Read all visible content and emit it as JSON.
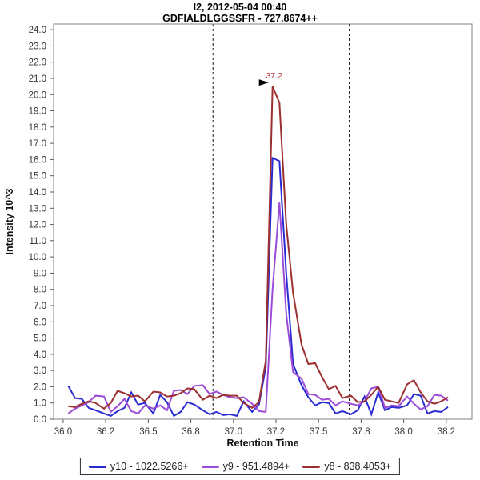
{
  "chart_data": {
    "type": "line",
    "title": "I2, 2012-05-04 00:40",
    "subtitle": "GDFIALDLGGSSFR - 727.8674++",
    "xlabel": "Retention Time",
    "ylabel": "Intensity 10^3",
    "xlim": [
      35.944,
      38.401
    ],
    "ylim": [
      0,
      24.35
    ],
    "grid": false,
    "legend_position": "bottom",
    "x_ticks": [
      {
        "v": 36.0,
        "label": "36.0"
      },
      {
        "v": 36.25,
        "label": "36.2"
      },
      {
        "v": 36.5,
        "label": "36.5"
      },
      {
        "v": 36.75,
        "label": "36.8"
      },
      {
        "v": 37.0,
        "label": "37.0"
      },
      {
        "v": 37.25,
        "label": "37.2"
      },
      {
        "v": 37.5,
        "label": "37.5"
      },
      {
        "v": 37.75,
        "label": "37.8"
      },
      {
        "v": 38.0,
        "label": "38.0"
      },
      {
        "v": 38.25,
        "label": "38.2"
      }
    ],
    "y_tick_labels": [
      "0.0",
      "1.0",
      "2.0",
      "3.0",
      "4.0",
      "5.0",
      "6.0",
      "7.0",
      "8.0",
      "9.0",
      "10.0",
      "11.0",
      "12.0",
      "13.0",
      "14.0",
      "15.0",
      "16.0",
      "17.0",
      "18.0",
      "19.0",
      "20.0",
      "21.0",
      "22.0",
      "23.0",
      "24.0"
    ],
    "peak_boundaries": [
      36.88,
      37.68
    ],
    "annotation": {
      "label": "37.2",
      "x": 37.23,
      "y": 20.5,
      "marker": "best-peak-right-arrow"
    },
    "colors": {
      "frame": "#808080",
      "tick": "#5a5a5a",
      "tick_label": "#333333",
      "axis_title": "#111111",
      "annotation": "#b53131",
      "boundary": "#1a1a1a",
      "background": "#ffffff",
      "legend_border": "#333333"
    },
    "series": [
      {
        "name": "y10 - 1022.5266+",
        "color": "#2b2bd2",
        "points": [
          [
            36.03,
            2.05
          ],
          [
            36.07,
            1.3
          ],
          [
            36.11,
            1.25
          ],
          [
            36.15,
            0.7
          ],
          [
            36.19,
            0.55
          ],
          [
            36.24,
            0.35
          ],
          [
            36.28,
            0.2
          ],
          [
            36.32,
            0.5
          ],
          [
            36.36,
            0.7
          ],
          [
            36.4,
            1.65
          ],
          [
            36.44,
            0.9
          ],
          [
            36.48,
            1.0
          ],
          [
            36.53,
            0.35
          ],
          [
            36.57,
            1.5
          ],
          [
            36.61,
            1.05
          ],
          [
            36.65,
            0.2
          ],
          [
            36.69,
            0.45
          ],
          [
            36.73,
            1.05
          ],
          [
            36.77,
            0.9
          ],
          [
            36.82,
            0.55
          ],
          [
            36.86,
            0.3
          ],
          [
            36.9,
            0.45
          ],
          [
            36.94,
            0.25
          ],
          [
            36.98,
            0.3
          ],
          [
            37.02,
            0.2
          ],
          [
            37.06,
            1.1
          ],
          [
            37.11,
            0.45
          ],
          [
            37.15,
            0.9
          ],
          [
            37.19,
            3.2
          ],
          [
            37.23,
            16.1
          ],
          [
            37.27,
            15.9
          ],
          [
            37.31,
            9.0
          ],
          [
            37.35,
            3.4
          ],
          [
            37.4,
            2.1
          ],
          [
            37.44,
            1.35
          ],
          [
            37.48,
            0.85
          ],
          [
            37.52,
            1.05
          ],
          [
            37.56,
            1.0
          ],
          [
            37.6,
            0.35
          ],
          [
            37.64,
            0.5
          ],
          [
            37.69,
            0.3
          ],
          [
            37.73,
            0.55
          ],
          [
            37.77,
            1.4
          ],
          [
            37.81,
            0.3
          ],
          [
            37.85,
            1.65
          ],
          [
            37.89,
            0.55
          ],
          [
            37.93,
            0.75
          ],
          [
            37.97,
            0.7
          ],
          [
            38.02,
            0.85
          ],
          [
            38.06,
            1.55
          ],
          [
            38.1,
            1.45
          ],
          [
            38.14,
            0.35
          ],
          [
            38.18,
            0.5
          ],
          [
            38.22,
            0.45
          ],
          [
            38.26,
            0.75
          ]
        ]
      },
      {
        "name": "y9 - 951.4894+",
        "color": "#9b4bd8",
        "points": [
          [
            36.03,
            0.35
          ],
          [
            36.07,
            0.65
          ],
          [
            36.11,
            0.85
          ],
          [
            36.15,
            1.05
          ],
          [
            36.19,
            1.45
          ],
          [
            36.24,
            1.4
          ],
          [
            36.28,
            0.45
          ],
          [
            36.32,
            0.8
          ],
          [
            36.36,
            1.25
          ],
          [
            36.4,
            0.5
          ],
          [
            36.44,
            0.35
          ],
          [
            36.48,
            0.85
          ],
          [
            36.53,
            0.65
          ],
          [
            36.57,
            0.85
          ],
          [
            36.61,
            0.55
          ],
          [
            36.65,
            1.75
          ],
          [
            36.69,
            1.8
          ],
          [
            36.73,
            1.55
          ],
          [
            36.77,
            2.05
          ],
          [
            36.82,
            2.1
          ],
          [
            36.86,
            1.55
          ],
          [
            36.9,
            1.7
          ],
          [
            36.94,
            1.5
          ],
          [
            36.98,
            1.35
          ],
          [
            37.02,
            1.3
          ],
          [
            37.06,
            1.35
          ],
          [
            37.11,
            0.95
          ],
          [
            37.15,
            0.5
          ],
          [
            37.19,
            0.45
          ],
          [
            37.23,
            8.0
          ],
          [
            37.27,
            13.35
          ],
          [
            37.31,
            6.5
          ],
          [
            37.35,
            2.9
          ],
          [
            37.4,
            2.5
          ],
          [
            37.44,
            1.55
          ],
          [
            37.48,
            1.5
          ],
          [
            37.52,
            1.2
          ],
          [
            37.56,
            1.25
          ],
          [
            37.6,
            0.85
          ],
          [
            37.64,
            1.1
          ],
          [
            37.69,
            0.95
          ],
          [
            37.73,
            0.85
          ],
          [
            37.77,
            1.1
          ],
          [
            37.81,
            1.9
          ],
          [
            37.85,
            2.0
          ],
          [
            37.89,
            0.7
          ],
          [
            37.93,
            0.85
          ],
          [
            37.97,
            0.8
          ],
          [
            38.02,
            1.4
          ],
          [
            38.06,
            0.95
          ],
          [
            38.1,
            0.6
          ],
          [
            38.14,
            0.8
          ],
          [
            38.18,
            1.5
          ],
          [
            38.22,
            1.45
          ],
          [
            38.26,
            1.15
          ]
        ]
      },
      {
        "name": "y8 - 838.4053+",
        "color": "#9c2f2f",
        "points": [
          [
            36.03,
            0.8
          ],
          [
            36.07,
            0.75
          ],
          [
            36.11,
            0.95
          ],
          [
            36.15,
            1.1
          ],
          [
            36.19,
            1.0
          ],
          [
            36.24,
            0.65
          ],
          [
            36.28,
            1.0
          ],
          [
            36.32,
            1.75
          ],
          [
            36.36,
            1.6
          ],
          [
            36.4,
            1.4
          ],
          [
            36.44,
            1.45
          ],
          [
            36.48,
            1.1
          ],
          [
            36.53,
            1.7
          ],
          [
            36.57,
            1.65
          ],
          [
            36.61,
            1.4
          ],
          [
            36.65,
            1.45
          ],
          [
            36.69,
            1.6
          ],
          [
            36.73,
            1.9
          ],
          [
            36.77,
            1.85
          ],
          [
            36.82,
            1.2
          ],
          [
            36.86,
            1.45
          ],
          [
            36.9,
            1.3
          ],
          [
            36.94,
            1.5
          ],
          [
            36.98,
            1.45
          ],
          [
            37.02,
            1.45
          ],
          [
            37.06,
            1.0
          ],
          [
            37.11,
            0.7
          ],
          [
            37.15,
            1.05
          ],
          [
            37.19,
            3.6
          ],
          [
            37.23,
            20.5
          ],
          [
            37.27,
            19.5
          ],
          [
            37.31,
            12.0
          ],
          [
            37.35,
            7.8
          ],
          [
            37.4,
            4.6
          ],
          [
            37.44,
            3.4
          ],
          [
            37.48,
            3.45
          ],
          [
            37.52,
            2.6
          ],
          [
            37.56,
            1.85
          ],
          [
            37.6,
            2.05
          ],
          [
            37.64,
            1.3
          ],
          [
            37.69,
            1.45
          ],
          [
            37.73,
            1.05
          ],
          [
            37.77,
            1.1
          ],
          [
            37.81,
            1.5
          ],
          [
            37.85,
            2.0
          ],
          [
            37.89,
            1.2
          ],
          [
            37.93,
            1.1
          ],
          [
            37.97,
            1.0
          ],
          [
            38.02,
            2.15
          ],
          [
            38.06,
            2.4
          ],
          [
            38.1,
            1.65
          ],
          [
            38.14,
            1.1
          ],
          [
            38.18,
            0.95
          ],
          [
            38.22,
            1.1
          ],
          [
            38.26,
            1.35
          ]
        ]
      }
    ]
  }
}
